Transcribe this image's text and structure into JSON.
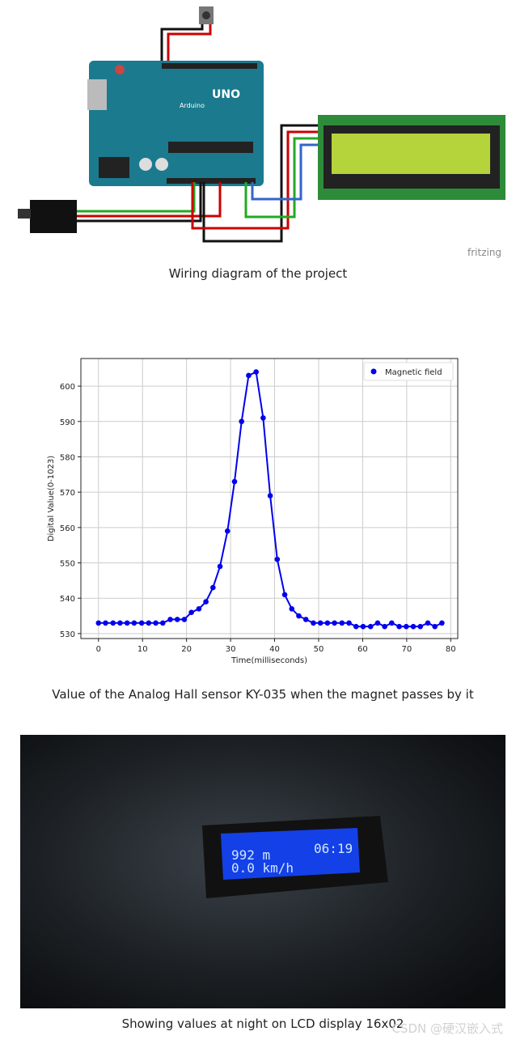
{
  "diagram": {
    "board_label": "UNO",
    "board_brand": "Arduino",
    "tool_label": "fritzing",
    "caption": "Wiring diagram of the project"
  },
  "chart_data": {
    "type": "line",
    "x": [
      0,
      1.6,
      3.3,
      4.9,
      6.5,
      8.1,
      9.8,
      11.4,
      13,
      14.6,
      16.3,
      17.9,
      19.5,
      21.1,
      22.8,
      24.4,
      26,
      27.6,
      29.3,
      30.9,
      32.5,
      34.1,
      35.8,
      37.4,
      39,
      40.6,
      42.3,
      43.9,
      45.5,
      47.1,
      48.8,
      50.4,
      52,
      53.6,
      55.3,
      56.9,
      58.5,
      60.1,
      61.8,
      63.4,
      65,
      66.6,
      68.3,
      69.9,
      71.5,
      73.1,
      74.8,
      76.4,
      78
    ],
    "series": [
      {
        "name": "Magnetic field",
        "color": "#0000ee",
        "values": [
          533,
          533,
          533,
          533,
          533,
          533,
          533,
          533,
          533,
          533,
          534,
          534,
          534,
          536,
          537,
          539,
          543,
          549,
          559,
          573,
          590,
          603,
          604,
          591,
          569,
          551,
          541,
          537,
          535,
          534,
          533,
          533,
          533,
          533,
          533,
          533,
          532,
          532,
          532,
          533,
          532,
          533,
          532,
          532,
          532,
          532,
          533,
          532,
          533
        ]
      }
    ],
    "xlim": [
      -4,
      81.6
    ],
    "ylim": [
      528.6,
      607.8
    ],
    "xticks": [
      0,
      10,
      20,
      30,
      40,
      50,
      60,
      70,
      80
    ],
    "yticks": [
      530,
      540,
      550,
      560,
      570,
      580,
      590,
      600
    ],
    "xlabel": "Time(milliseconds)",
    "ylabel": "Digital Value(0-1023)",
    "grid": true,
    "legend": "upper right",
    "markers": true
  },
  "chart_caption": "Value of the Analog Hall sensor KY-035 when the magnet passes by it",
  "photo": {
    "lcd_line1": "992 m",
    "lcd_time": "06:19",
    "lcd_line2": "0.0 km/h",
    "caption": "Showing values at night on LCD display 16x02"
  },
  "watermark": "CSDN @硬汉嵌入式"
}
